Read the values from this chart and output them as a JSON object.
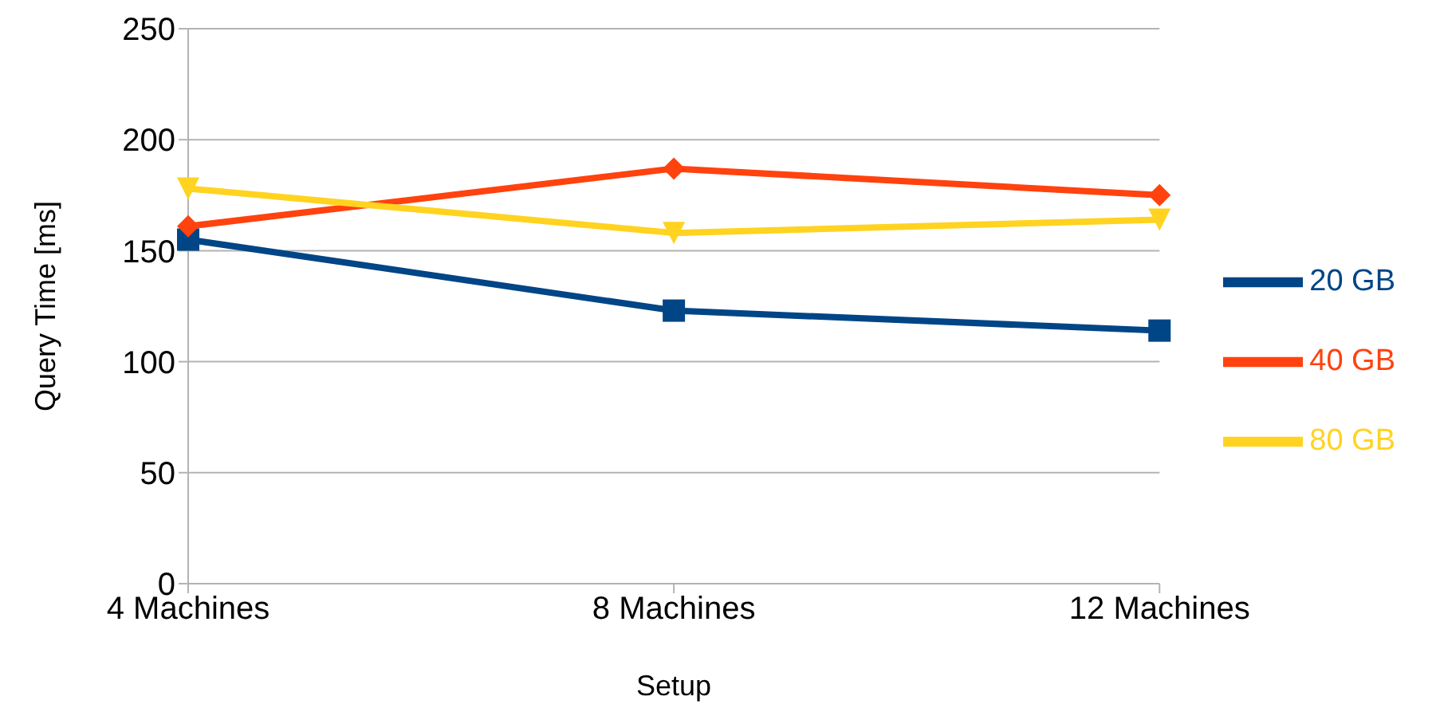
{
  "chart_data": {
    "type": "line",
    "xlabel": "Setup",
    "ylabel": "Query Time [ms]",
    "categories": [
      "4 Machines",
      "8 Machines",
      "12 Machines"
    ],
    "series": [
      {
        "name": "20 GB",
        "color": "#004586",
        "marker": "square",
        "values": [
          155,
          123,
          114
        ]
      },
      {
        "name": "40 GB",
        "color": "#ff420e",
        "marker": "diamond",
        "values": [
          161,
          187,
          175
        ]
      },
      {
        "name": "80 GB",
        "color": "#ffd320",
        "marker": "triangle-down",
        "values": [
          178,
          158,
          164
        ]
      }
    ],
    "ylim": [
      0,
      250
    ],
    "yticks": [
      0,
      50,
      100,
      150,
      200,
      250
    ],
    "grid": "y",
    "legend": "right"
  }
}
